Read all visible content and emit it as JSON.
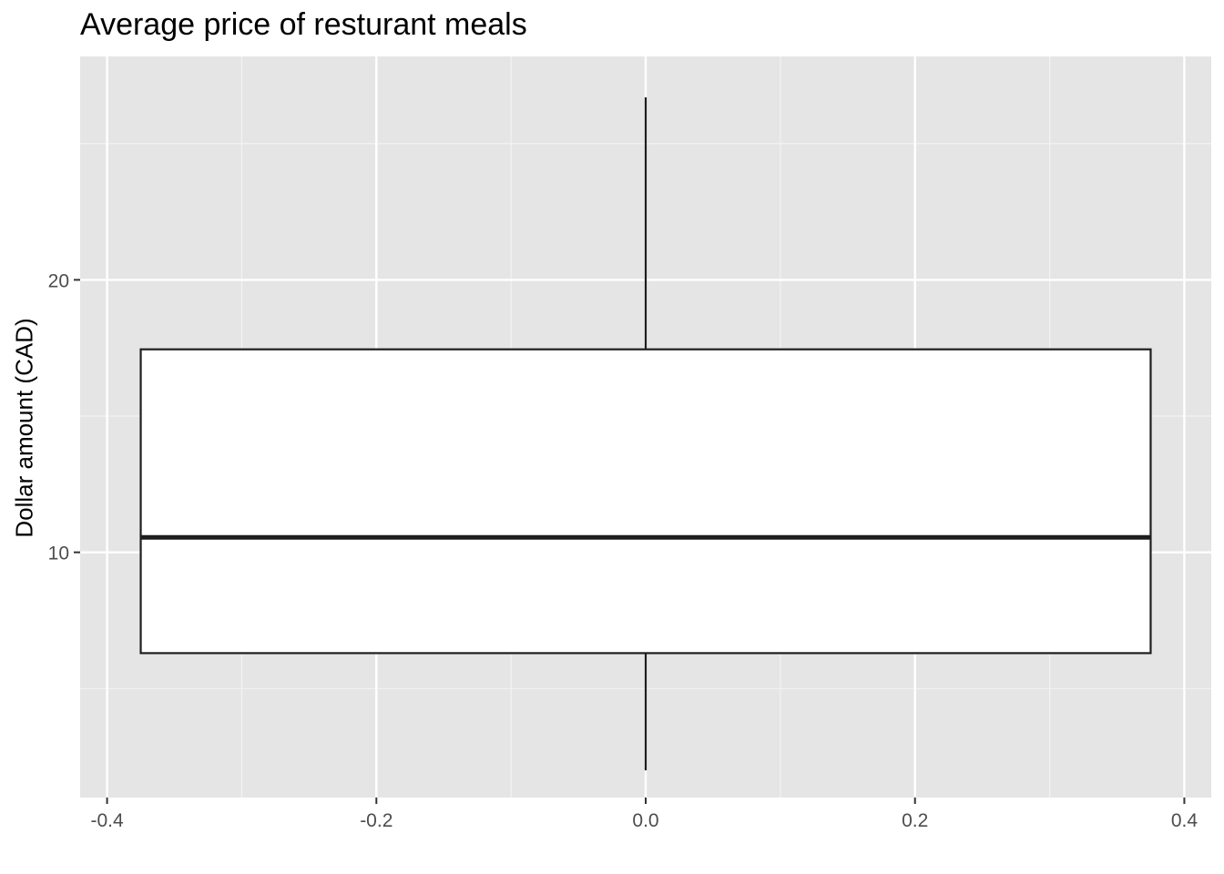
{
  "chart_data": {
    "type": "boxplot",
    "title": "Average price of resturant meals",
    "xlabel": "",
    "ylabel": "Dollar amount (CAD)",
    "xlim": [
      -0.42,
      0.42
    ],
    "ylim": [
      1,
      28.2
    ],
    "x_ticks": [
      -0.4,
      -0.2,
      0.0,
      0.2,
      0.4
    ],
    "x_tick_labels": [
      "-0.4",
      "-0.2",
      "0.0",
      "0.2",
      "0.4"
    ],
    "y_ticks": [
      10,
      20
    ],
    "y_tick_labels": [
      "10",
      "20"
    ],
    "grid": true,
    "box": {
      "x_center": 0.0,
      "x_left": -0.375,
      "x_right": 0.375,
      "whisker_low": 2.0,
      "q1": 6.3,
      "median": 10.55,
      "q3": 17.45,
      "whisker_high": 26.7
    },
    "colors": {
      "panel_background": "#e5e5e5",
      "grid_major": "#ffffff",
      "grid_minor": "#f2f2f2",
      "box_fill": "#ffffff",
      "box_stroke": "#1e1e1e",
      "tick_text": "#4d4d4d",
      "tick_mark": "#333333"
    }
  }
}
